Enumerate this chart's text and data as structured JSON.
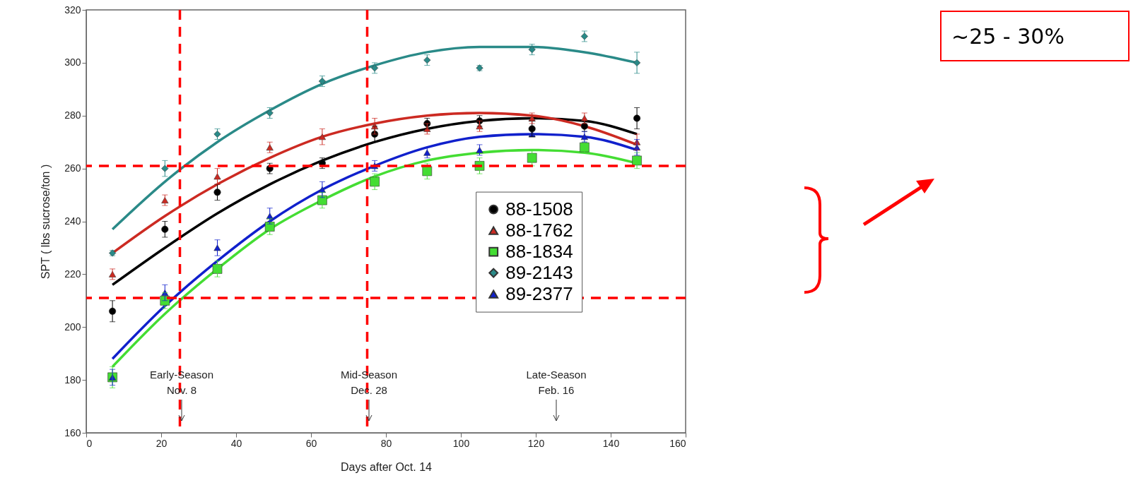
{
  "chart_data": {
    "type": "scatter",
    "xlabel": "Days after Oct. 14",
    "ylabel": "SPT ( lbs sucrose/ton )",
    "xlim": [
      0,
      160
    ],
    "xticks": [
      0,
      20,
      40,
      60,
      80,
      100,
      120,
      140,
      160
    ],
    "ylim": [
      160,
      320
    ],
    "yticks": [
      160,
      180,
      200,
      220,
      240,
      260,
      280,
      300,
      320
    ],
    "x": [
      7,
      21,
      35,
      49,
      63,
      77,
      91,
      105,
      119,
      133,
      147
    ],
    "legend": "right",
    "series": [
      {
        "name": "88-1508",
        "color": "#000000",
        "marker": "circle",
        "values": [
          206,
          237,
          251,
          260,
          262,
          273,
          277,
          278,
          275,
          276,
          279
        ],
        "errors": [
          4,
          3,
          3,
          2,
          2,
          3,
          2,
          2,
          3,
          2,
          4
        ]
      },
      {
        "name": "88-1762",
        "color": "#cc2a22",
        "marker": "triangle",
        "values": [
          220,
          248,
          257,
          268,
          272,
          276,
          275,
          276,
          279,
          279,
          270
        ],
        "errors": [
          2,
          2,
          3,
          2,
          3,
          3,
          2,
          2,
          2,
          2,
          3
        ]
      },
      {
        "name": "88-1834",
        "color": "#44dd33",
        "marker": "square",
        "values": [
          181,
          210,
          222,
          238,
          248,
          255,
          259,
          261,
          264,
          268,
          263
        ],
        "errors": [
          4,
          3,
          3,
          3,
          3,
          3,
          3,
          3,
          3,
          2,
          3
        ]
      },
      {
        "name": "89-2143",
        "color": "#2a8a88",
        "marker": "diamond",
        "values": [
          228,
          260,
          273,
          281,
          293,
          298,
          301,
          298,
          305,
          310,
          300
        ],
        "errors": [
          1,
          3,
          2,
          2,
          2,
          2,
          2,
          1,
          2,
          2,
          4
        ]
      },
      {
        "name": "89-2377",
        "color": "#1020cc",
        "marker": "triangle",
        "values": [
          181,
          213,
          230,
          242,
          252,
          261,
          266,
          267,
          273,
          272,
          268
        ],
        "errors": [
          3,
          3,
          3,
          3,
          3,
          2,
          2,
          2,
          null,
          2,
          3
        ]
      },
      {
        "type": "line",
        "color": "#000000",
        "values": [
          216,
          230,
          243,
          254,
          263,
          270,
          275,
          278,
          279,
          278,
          273
        ]
      },
      {
        "type": "line",
        "color": "#cc2a22",
        "values": [
          228,
          242,
          254,
          264,
          272,
          277,
          280,
          281,
          280,
          276,
          269
        ]
      },
      {
        "type": "line",
        "color": "#44dd33",
        "values": [
          185,
          205,
          222,
          237,
          248,
          257,
          263,
          266,
          267,
          266,
          262
        ]
      },
      {
        "type": "line",
        "color": "#2a8a88",
        "values": [
          237,
          255,
          270,
          282,
          292,
          299,
          304,
          306,
          306,
          304,
          300
        ]
      },
      {
        "type": "line",
        "color": "#1020cc",
        "values": [
          188,
          208,
          225,
          240,
          252,
          261,
          268,
          272,
          273,
          272,
          267
        ]
      }
    ],
    "ref_lines": [
      {
        "axis": "y",
        "value": 211,
        "color": "#ff0000",
        "line_style": "dashed"
      },
      {
        "axis": "y",
        "value": 261,
        "color": "#ff0000",
        "line_style": "dashed"
      },
      {
        "axis": "x",
        "value": 25,
        "color": "#ff0000",
        "line_style": "dashed"
      },
      {
        "axis": "x",
        "value": 75,
        "color": "#ff0000",
        "line_style": "dashed"
      }
    ],
    "annotations": [
      "Early-Season\nNov. 8",
      "Mid-Season\nDec. 28",
      "Late-Season\nFeb. 16",
      "~25 - 30%"
    ]
  }
}
